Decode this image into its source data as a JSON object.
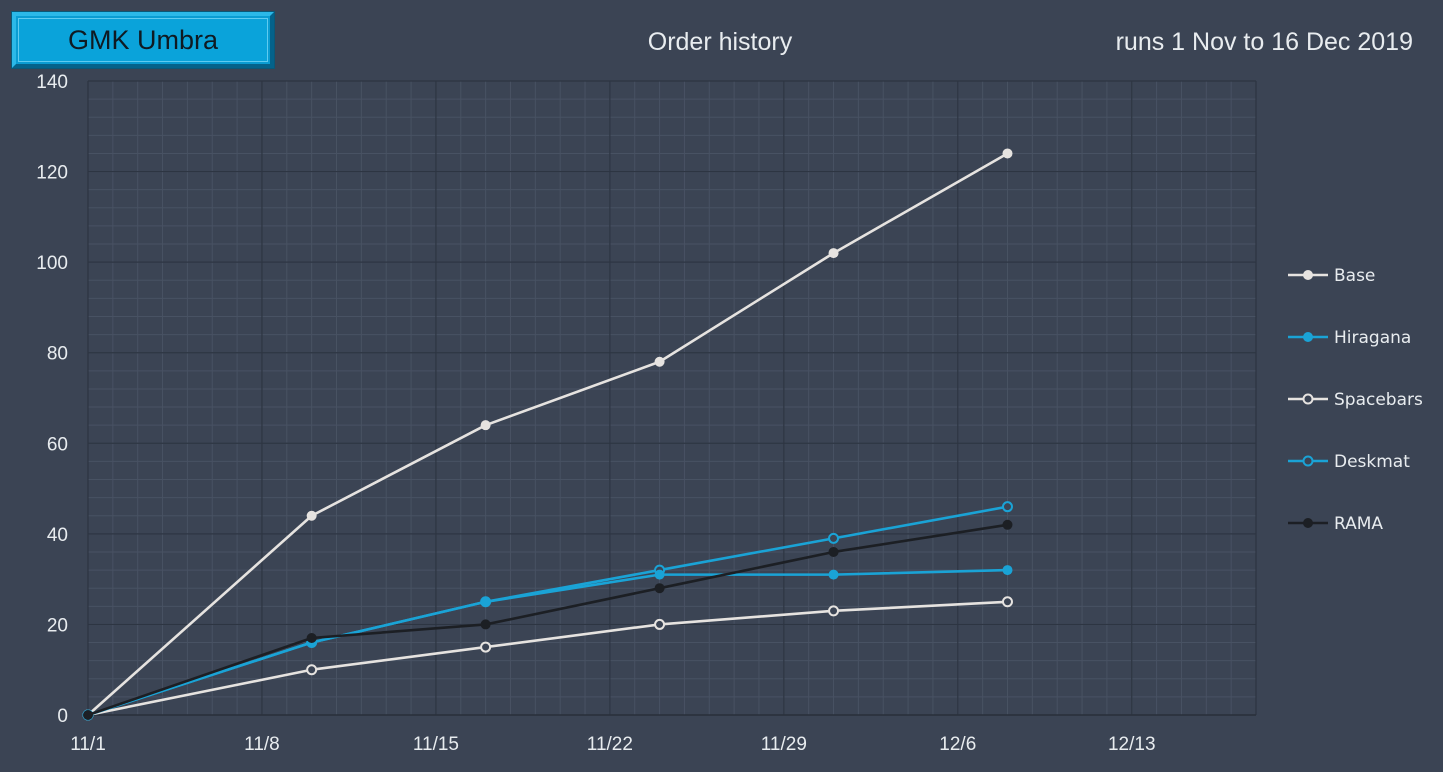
{
  "header": {
    "badge_label": "GMK Umbra",
    "title": "Order history",
    "subtitle": "runs 1 Nov to 16 Dec 2019"
  },
  "colors": {
    "background": "#3b4454",
    "light": "#e6e3e0",
    "blue": "#1aa3d6",
    "dark": "#1c1f24"
  },
  "chart_data": {
    "type": "line",
    "title": "Order history",
    "xlabel": "",
    "ylabel": "",
    "x_ticks": [
      "11/1",
      "11/8",
      "11/15",
      "11/22",
      "11/29",
      "12/6",
      "12/13"
    ],
    "x_range_days": [
      0,
      47
    ],
    "y_ticks": [
      "0",
      "20",
      "40",
      "60",
      "80",
      "100",
      "120",
      "140"
    ],
    "ylim": [
      0,
      140
    ],
    "grid": true,
    "legend_position": "right",
    "x_dates": [
      "11/1",
      "11/10",
      "11/17",
      "11/24",
      "12/1",
      "12/8"
    ],
    "series": [
      {
        "name": "Base",
        "color": "#e6e3e0",
        "marker": "filled",
        "values": [
          0,
          44,
          64,
          78,
          102,
          124
        ]
      },
      {
        "name": "Hiragana",
        "color": "#1aa3d6",
        "marker": "filled",
        "values": [
          0,
          16,
          25,
          31,
          31,
          32
        ]
      },
      {
        "name": "Spacebars",
        "color": "#e6e3e0",
        "marker": "hollow",
        "values": [
          0,
          10,
          15,
          20,
          23,
          25
        ]
      },
      {
        "name": "Deskmat",
        "color": "#1aa3d6",
        "marker": "hollow",
        "values": [
          0,
          16,
          25,
          32,
          39,
          46
        ]
      },
      {
        "name": "RAMA",
        "color": "#1c1f24",
        "marker": "filled",
        "values": [
          0,
          17,
          20,
          28,
          36,
          42
        ]
      }
    ]
  }
}
